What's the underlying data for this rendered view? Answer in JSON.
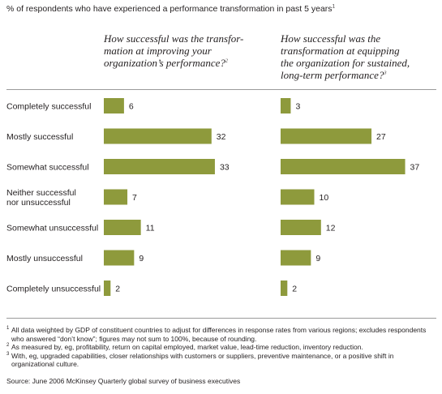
{
  "subtitle": "% of respondents who have experienced a performance transformation in past 5 years",
  "subtitle_note": "1",
  "bar_color": "#8e9a3c",
  "chart_data": [
    {
      "type": "bar",
      "title": "How successful was the transformation at improving your organization’s performance?",
      "title_note": "2",
      "categories": [
        "Completely successful",
        "Mostly successful",
        "Somewhat successful",
        "Neither successful nor unsuccessful",
        "Somewhat unsuccessful",
        "Mostly unsuccessful",
        "Completely unsuccessful"
      ],
      "values": [
        6,
        32,
        33,
        7,
        11,
        9,
        2
      ],
      "orientation": "horizontal",
      "grid": false
    },
    {
      "type": "bar",
      "title": "How successful was the transformation at equipping the organization for sustained, long-term performance?",
      "title_note": "3",
      "categories": [
        "Completely successful",
        "Mostly successful",
        "Somewhat successful",
        "Neither successful nor unsuccessful",
        "Somewhat unsuccessful",
        "Mostly unsuccessful",
        "Completely unsuccessful"
      ],
      "values": [
        3,
        27,
        37,
        10,
        12,
        9,
        2
      ],
      "orientation": "horizontal",
      "grid": false
    }
  ],
  "category_labels": [
    [
      "Completely successful"
    ],
    [
      "Mostly successful"
    ],
    [
      "Somewhat successful"
    ],
    [
      "Neither successful",
      "nor unsuccessful"
    ],
    [
      "Somewhat unsuccessful"
    ],
    [
      "Mostly unsuccessful"
    ],
    [
      "Completely unsuccessful"
    ]
  ],
  "q1_title_lines": [
    "How successful was the transfor-",
    "mation at improving your",
    "organization’s performance?"
  ],
  "q2_title_lines": [
    "How successful was the",
    "transformation at equipping",
    "the organization for sustained,",
    "long-term performance?"
  ],
  "footnotes": {
    "fn1_mark": "1",
    "fn1": "All data weighted by GDP of constituent countries to adjust for differences in response rates from various regions; excludes respondents who answered “don’t know”; figures may not sum to 100%, because of rounding.",
    "fn2_mark": "2",
    "fn2": "As measured by, eg, profitability, return on capital employed, market value, lead-time reduction, inventory reduction.",
    "fn3_mark": "3",
    "fn3": "With, eg, upgraded capabilities, closer relationships with customers or suppliers, preventive maintenance, or a positive shift in organizational culture."
  },
  "source": "Source: June 2006 McKinsey Quarterly global survey of business executives"
}
